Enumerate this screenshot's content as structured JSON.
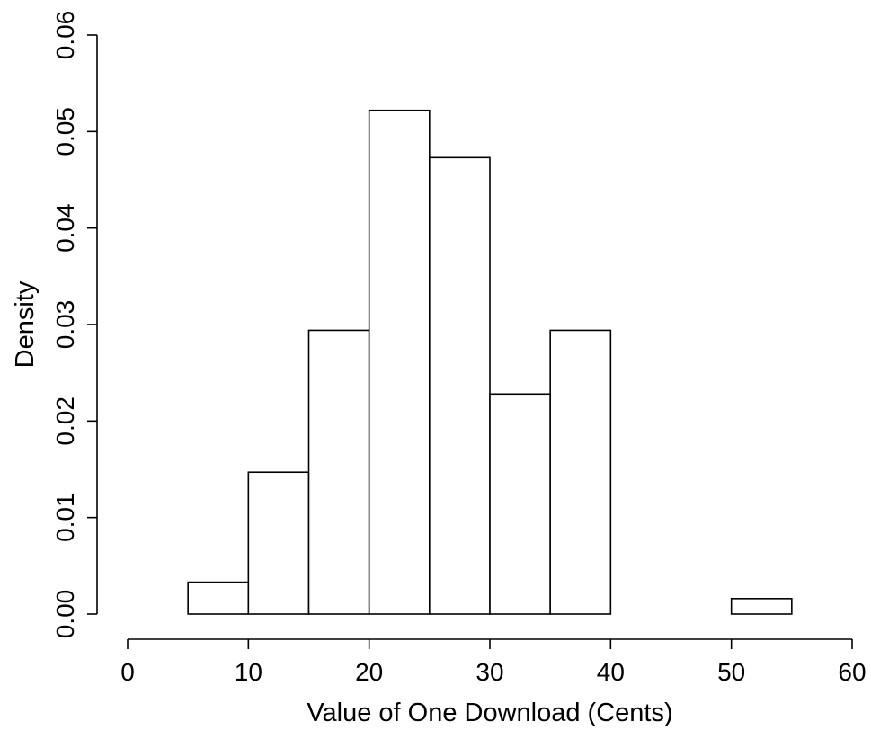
{
  "chart_data": {
    "type": "bar",
    "subtype": "histogram",
    "title": "",
    "xlabel": "Value of One Download (Cents)",
    "ylabel": "Density",
    "xlim": [
      0,
      60
    ],
    "ylim": [
      0,
      0.06
    ],
    "x_ticks": [
      0,
      10,
      20,
      30,
      40,
      50,
      60
    ],
    "x_tick_labels": [
      "0",
      "10",
      "20",
      "30",
      "40",
      "50",
      "60"
    ],
    "y_ticks": [
      0,
      0.01,
      0.02,
      0.03,
      0.04,
      0.05,
      0.06
    ],
    "y_tick_labels": [
      "0.00",
      "0.01",
      "0.02",
      "0.03",
      "0.04",
      "0.05",
      "0.06"
    ],
    "bins": [
      {
        "start": 5,
        "end": 10,
        "density": 0.0033
      },
      {
        "start": 10,
        "end": 15,
        "density": 0.0147
      },
      {
        "start": 15,
        "end": 20,
        "density": 0.0294
      },
      {
        "start": 20,
        "end": 25,
        "density": 0.0522
      },
      {
        "start": 25,
        "end": 30,
        "density": 0.0473
      },
      {
        "start": 30,
        "end": 35,
        "density": 0.0228
      },
      {
        "start": 35,
        "end": 40,
        "density": 0.0294
      },
      {
        "start": 40,
        "end": 45,
        "density": 0.0
      },
      {
        "start": 45,
        "end": 50,
        "density": 0.0
      },
      {
        "start": 50,
        "end": 55,
        "density": 0.0016
      }
    ],
    "colors": {
      "bar_fill": "#ffffff",
      "bar_stroke": "#000000",
      "axis": "#000000"
    },
    "grid": false,
    "legend": "none"
  }
}
